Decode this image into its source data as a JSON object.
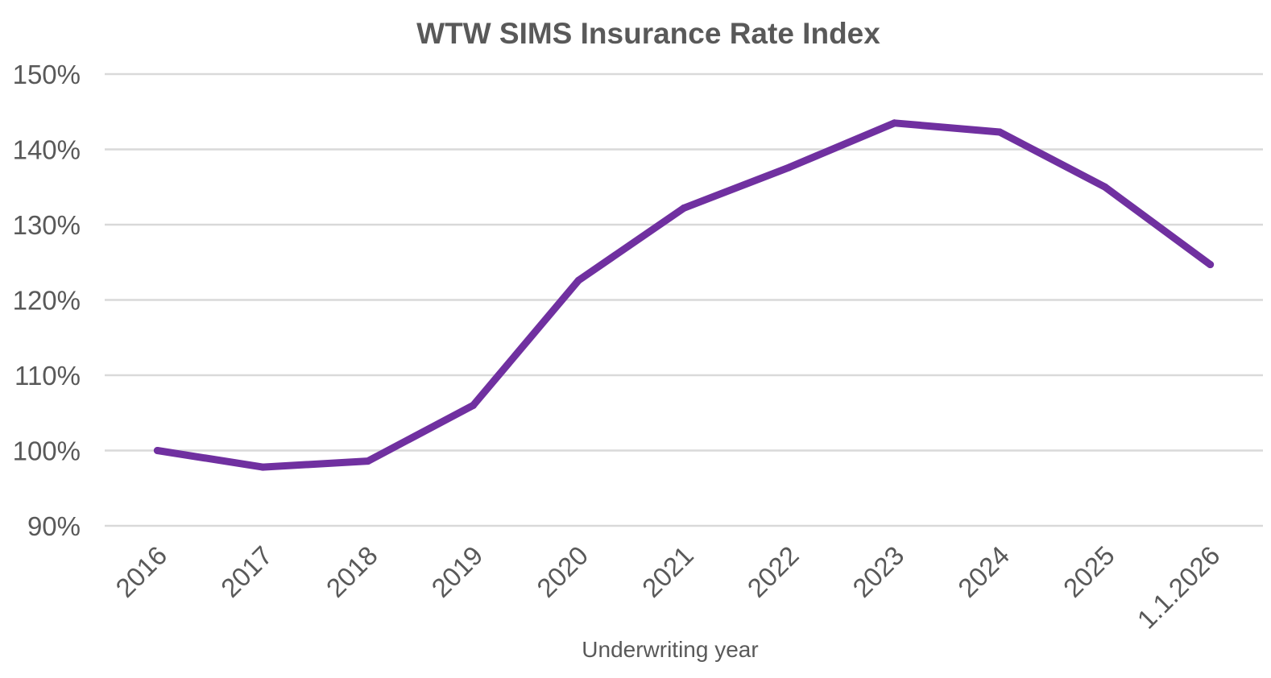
{
  "chart_data": {
    "type": "line",
    "title": "WTW SIMS Insurance Rate Index",
    "xlabel": "Underwriting year",
    "ylabel": "",
    "categories": [
      "2016",
      "2017",
      "2018",
      "2019",
      "2020",
      "2021",
      "2022",
      "2023",
      "2024",
      "2025",
      "1.1.2026"
    ],
    "series": [
      {
        "color": "#7030a0",
        "values": [
          100,
          97.8,
          98.6,
          106,
          122.6,
          132.2,
          137.6,
          143.5,
          142.3,
          135,
          124.7
        ]
      }
    ],
    "y_ticks": [
      "90%",
      "100%",
      "110%",
      "120%",
      "130%",
      "140%",
      "150%"
    ],
    "ylim": [
      90,
      150
    ],
    "grid": true,
    "legend": "none"
  }
}
